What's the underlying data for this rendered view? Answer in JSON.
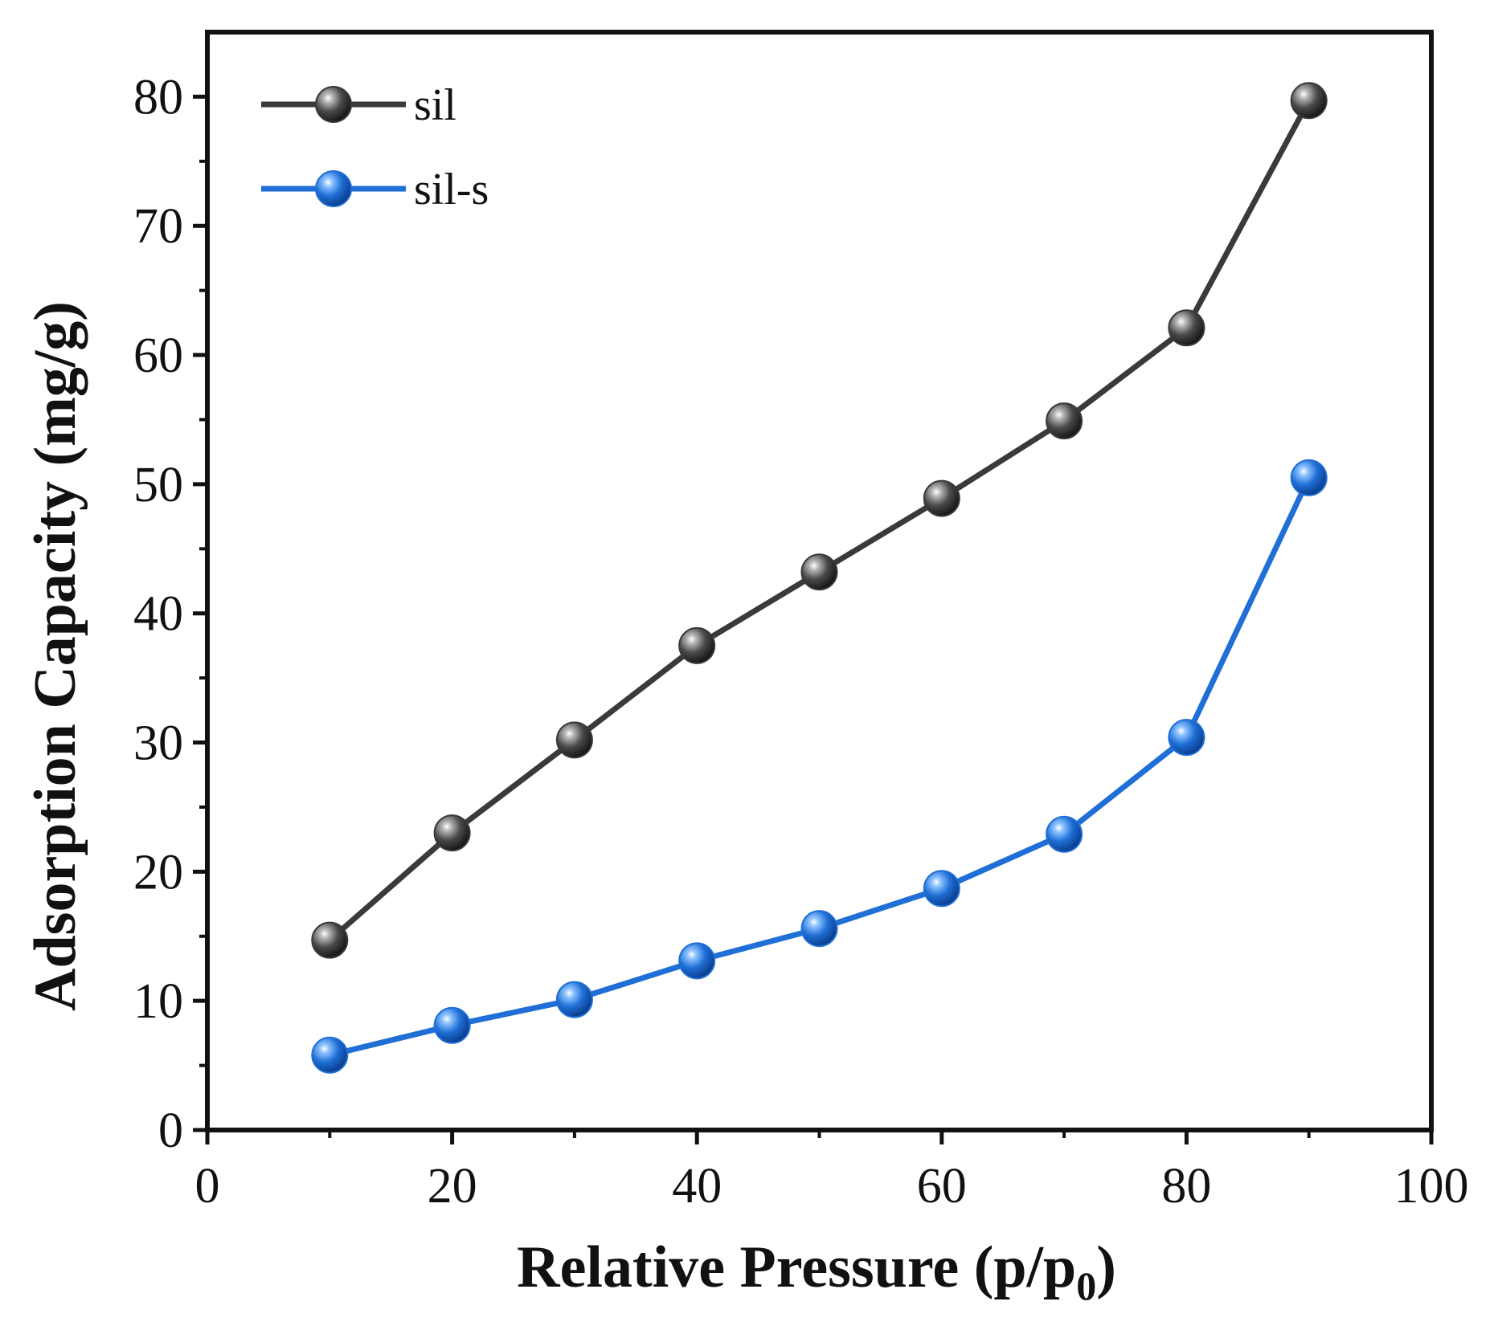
{
  "chart_data": {
    "type": "line",
    "title": "",
    "xlabel": "Relative Pressure (p/p",
    "xlabel_subscript": "0",
    "xlabel_close": ")",
    "ylabel": "Adsorption Capacity (mg/g)",
    "xlim": [
      0,
      100
    ],
    "ylim": [
      0,
      85
    ],
    "x_ticks": [
      0,
      20,
      40,
      60,
      80,
      100
    ],
    "y_ticks": [
      0,
      10,
      20,
      30,
      40,
      50,
      60,
      70,
      80
    ],
    "x_tick_labels": [
      "0",
      "20",
      "40",
      "60",
      "80",
      "100"
    ],
    "y_tick_labels": [
      "0",
      "10",
      "20",
      "30",
      "40",
      "50",
      "60",
      "70",
      "80"
    ],
    "grid": false,
    "legend_position": "top-left",
    "x": [
      10,
      20,
      30,
      40,
      50,
      60,
      70,
      80,
      90
    ],
    "series": [
      {
        "name": "sil",
        "color": "#3a3a3a",
        "values": [
          14.7,
          23.0,
          30.2,
          37.5,
          43.2,
          48.9,
          54.9,
          62.1,
          79.7
        ]
      },
      {
        "name": "sil-s",
        "color": "#1f6fd6",
        "values": [
          5.8,
          8.1,
          10.1,
          13.1,
          15.6,
          18.7,
          22.9,
          30.4,
          50.5
        ]
      }
    ]
  }
}
